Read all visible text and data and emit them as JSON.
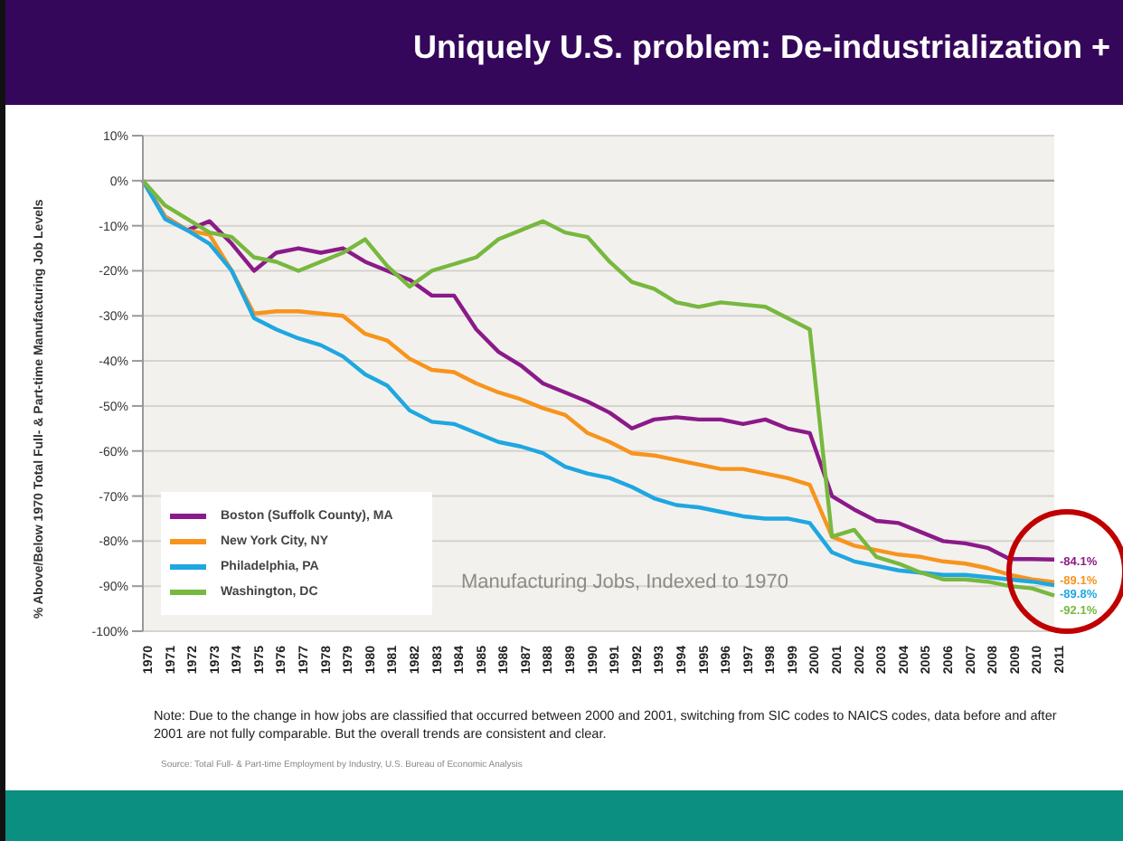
{
  "chart_data": {
    "type": "line",
    "title": "Uniquely U.S. problem:  De-industrialization +",
    "ylabel": "% Above/Below 1970 Total Full- & Part-time Manufacturing Job Levels",
    "categories": [
      "1970",
      "1971",
      "1972",
      "1973",
      "1974",
      "1975",
      "1976",
      "1977",
      "1978",
      "1979",
      "1980",
      "1981",
      "1982",
      "1983",
      "1984",
      "1985",
      "1986",
      "1987",
      "1988",
      "1989",
      "1990",
      "1991",
      "1992",
      "1993",
      "1994",
      "1995",
      "1996",
      "1997",
      "1998",
      "1999",
      "2000",
      "2001",
      "2002",
      "2003",
      "2004",
      "2005",
      "2006",
      "2007",
      "2008",
      "2009",
      "2010",
      "2011"
    ],
    "series": [
      {
        "name": "Boston (Suffolk County), MA",
        "color": "#8b1a89",
        "values": [
          0,
          -8,
          -11,
          -9,
          -14,
          -20,
          -16,
          -15,
          -16,
          -15,
          -18,
          -20,
          -22,
          -25.5,
          -25.5,
          -33,
          -38,
          -41,
          -45,
          -47,
          -49,
          -51.5,
          -55,
          -53,
          -52.5,
          -53,
          -53,
          -54,
          -53,
          -55,
          -56,
          -70,
          -73,
          -75.5,
          -76,
          -78,
          -80,
          -80.5,
          -81.5,
          -84,
          -84,
          -84.1
        ],
        "value_labels": [
          null,
          null,
          null,
          null,
          null,
          null,
          null,
          null,
          null,
          null,
          null,
          null,
          null,
          null,
          null,
          null,
          null,
          null,
          null,
          null,
          null,
          null,
          null,
          null,
          null,
          null,
          null,
          null,
          null,
          null,
          null,
          null,
          null,
          null,
          null,
          null,
          null,
          null,
          null,
          null,
          null,
          "-84.1%"
        ]
      },
      {
        "name": "New York City, NY",
        "color": "#f7941d",
        "values": [
          0,
          -8,
          -11,
          -12,
          -20,
          -29.5,
          -29,
          -29,
          -29.5,
          -30,
          -34,
          -35.5,
          -39.5,
          -42,
          -42.5,
          -45,
          -47,
          -48.5,
          -50.5,
          -52,
          -56,
          -58,
          -60.5,
          -61,
          -62,
          -63,
          -64,
          -64,
          -65,
          -66,
          -67.5,
          -79,
          -81,
          -82,
          -83,
          -83.5,
          -84.5,
          -85,
          -86,
          -87.5,
          -88.5,
          -89.1
        ],
        "value_labels": [
          null,
          null,
          null,
          null,
          null,
          null,
          null,
          null,
          null,
          null,
          null,
          null,
          null,
          null,
          null,
          null,
          null,
          null,
          null,
          null,
          null,
          null,
          null,
          null,
          null,
          null,
          null,
          null,
          null,
          null,
          null,
          null,
          null,
          null,
          null,
          null,
          null,
          null,
          null,
          null,
          null,
          "-89.1%"
        ]
      },
      {
        "name": "Philadelphia, PA",
        "color": "#1ea7e1",
        "values": [
          0,
          -8.5,
          -11,
          -14,
          -20,
          -30.5,
          -33,
          -35,
          -36.5,
          -39,
          -43,
          -45.5,
          -51,
          -53.5,
          -54,
          -56,
          -58,
          -59,
          -60.5,
          -63.5,
          -65,
          -66,
          -68,
          -70.5,
          -72,
          -72.5,
          -73.5,
          -74.5,
          -75,
          -75,
          -76,
          -82.5,
          -84.5,
          -85.5,
          -86.5,
          -87,
          -87.5,
          -87.5,
          -88,
          -88.5,
          -89,
          -89.8
        ],
        "value_labels": [
          null,
          null,
          null,
          null,
          null,
          null,
          null,
          null,
          null,
          null,
          null,
          null,
          null,
          null,
          null,
          null,
          null,
          null,
          null,
          null,
          null,
          null,
          null,
          null,
          null,
          null,
          null,
          null,
          null,
          null,
          null,
          null,
          null,
          null,
          null,
          null,
          null,
          null,
          null,
          null,
          null,
          "-89.8%"
        ]
      },
      {
        "name": "Washington, DC",
        "color": "#77b83f",
        "values": [
          0,
          -5.5,
          -8.5,
          -11.5,
          -12.5,
          -17,
          -18,
          -20,
          -18,
          -16,
          -13,
          -19,
          -23.5,
          -20,
          -18.5,
          -17,
          -13,
          -11,
          -9,
          -11.5,
          -12.5,
          -18,
          -22.5,
          -24,
          -27,
          -28,
          -27,
          -27.5,
          -28,
          -30.5,
          -33,
          -79,
          -77.5,
          -83.5,
          -85,
          -87,
          -88.5,
          -88.5,
          -89,
          -90,
          -90.5,
          -92.1
        ],
        "value_labels": [
          null,
          null,
          null,
          null,
          null,
          null,
          null,
          null,
          null,
          null,
          null,
          null,
          null,
          null,
          null,
          null,
          null,
          null,
          null,
          null,
          null,
          null,
          null,
          null,
          null,
          null,
          null,
          null,
          null,
          null,
          null,
          null,
          null,
          null,
          null,
          null,
          null,
          null,
          null,
          null,
          null,
          "-92.1%"
        ]
      }
    ],
    "ylim": [
      -100,
      10
    ],
    "yticks": [
      {
        "value": 10,
        "label": "10%"
      },
      {
        "value": 0,
        "label": "0%"
      },
      {
        "value": -10,
        "label": "-10%"
      },
      {
        "value": -20,
        "label": "-20%"
      },
      {
        "value": -30,
        "label": "-30%"
      },
      {
        "value": -40,
        "label": "-40%"
      },
      {
        "value": -50,
        "label": "-50%"
      },
      {
        "value": -60,
        "label": "-60%"
      },
      {
        "value": -70,
        "label": "-70%"
      },
      {
        "value": -80,
        "label": "-80%"
      },
      {
        "value": -90,
        "label": "-90%"
      },
      {
        "value": -100,
        "label": "-100%"
      }
    ],
    "grid": "y",
    "legend": "bottom left",
    "marker": "none",
    "line_style": "solid",
    "ref_lines": [
      {
        "axis": "y",
        "value": 0,
        "color": "#999999"
      }
    ],
    "annotations": [
      "Manufacturing Jobs, Indexed to 1970",
      "Note: Due to the change in how jobs are classified that occurred between 2000 and 2001, switching from SIC codes to NAICS codes, data before and after 2001 are not fully comparable. But the overall trends are consistent and clear.",
      "Source: Total Full- & Part-time Employment by Industry, U.S. Bureau of Economic Analysis"
    ]
  }
}
